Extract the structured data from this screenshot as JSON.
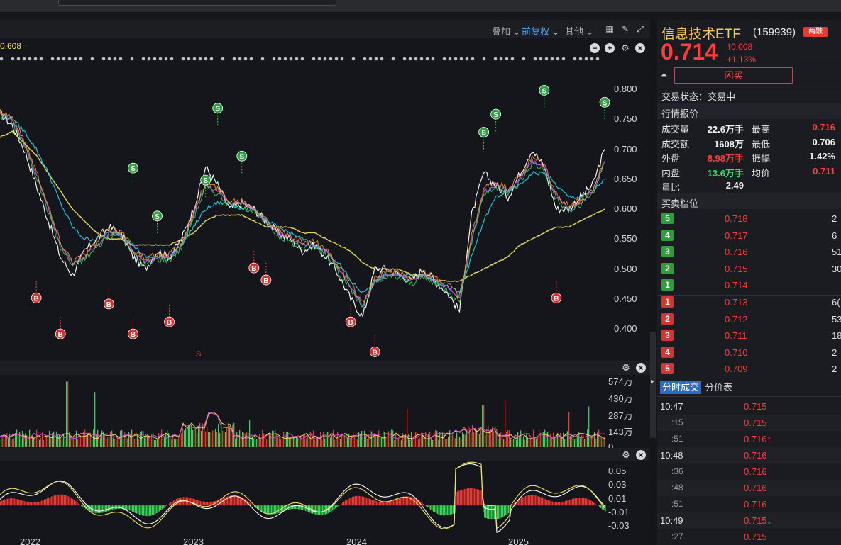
{
  "chart_toolbar": {
    "overlay": "叠加",
    "overlay_arrow": "⌄",
    "fq": "前复权",
    "fq_arrow": "⌄",
    "other": "其他",
    "other_arrow": "⌄"
  },
  "ma_label": "0.608 ↑",
  "colors": {
    "up": "#ff3b3b",
    "down": "#2ee06a",
    "title": "#f2c94c",
    "accent": "#2b6cc4"
  },
  "chart_data": [
    {
      "type": "line",
      "panel": "price",
      "y_ticks": [
        "0.800",
        "0.750",
        "0.700",
        "0.650",
        "0.600",
        "0.550",
        "0.500",
        "0.450",
        "0.400"
      ],
      "ylim": [
        0.36,
        0.84
      ],
      "x_ticks": [
        "2022",
        "2023",
        "2024",
        "2025"
      ],
      "series": [
        {
          "color": "#ffffff",
          "values": [
            0.76,
            0.74,
            0.7,
            0.64,
            0.58,
            0.52,
            0.49,
            0.53,
            0.55,
            0.57,
            0.56,
            0.52,
            0.5,
            0.53,
            0.52,
            0.55,
            0.6,
            0.67,
            0.64,
            0.6,
            0.61,
            0.6,
            0.58,
            0.56,
            0.55,
            0.53,
            0.54,
            0.52,
            0.49,
            0.45,
            0.42,
            0.5,
            0.5,
            0.49,
            0.48,
            0.5,
            0.48,
            0.46,
            0.43,
            0.59,
            0.66,
            0.64,
            0.62,
            0.66,
            0.7,
            0.67,
            0.6,
            0.6,
            0.62,
            0.64,
            0.7
          ]
        },
        {
          "color": "#f0e060",
          "values": [
            0.72,
            0.73,
            0.71,
            0.69,
            0.66,
            0.63,
            0.6,
            0.58,
            0.56,
            0.55,
            0.55,
            0.54,
            0.54,
            0.54,
            0.54,
            0.55,
            0.56,
            0.58,
            0.59,
            0.59,
            0.59,
            0.58,
            0.57,
            0.57,
            0.57,
            0.56,
            0.56,
            0.55,
            0.54,
            0.53,
            0.51,
            0.5,
            0.5,
            0.5,
            0.49,
            0.49,
            0.48,
            0.48,
            0.48,
            0.49,
            0.5,
            0.51,
            0.52,
            0.54,
            0.55,
            0.56,
            0.57,
            0.57,
            0.58,
            0.59,
            0.6
          ]
        },
        {
          "color": "#27c6e0",
          "values": [
            0.76,
            0.75,
            0.73,
            0.7,
            0.66,
            0.61,
            0.57,
            0.55,
            0.55,
            0.56,
            0.56,
            0.54,
            0.52,
            0.52,
            0.52,
            0.54,
            0.57,
            0.6,
            0.61,
            0.61,
            0.6,
            0.6,
            0.58,
            0.57,
            0.56,
            0.55,
            0.54,
            0.53,
            0.51,
            0.48,
            0.46,
            0.48,
            0.49,
            0.49,
            0.49,
            0.49,
            0.48,
            0.47,
            0.46,
            0.52,
            0.58,
            0.62,
            0.63,
            0.64,
            0.66,
            0.66,
            0.64,
            0.62,
            0.62,
            0.63,
            0.65
          ]
        },
        {
          "color": "#c050ff",
          "values": [
            0.76,
            0.75,
            0.71,
            0.66,
            0.6,
            0.54,
            0.51,
            0.52,
            0.54,
            0.56,
            0.56,
            0.53,
            0.51,
            0.52,
            0.52,
            0.54,
            0.59,
            0.64,
            0.63,
            0.61,
            0.61,
            0.6,
            0.58,
            0.56,
            0.55,
            0.54,
            0.54,
            0.53,
            0.5,
            0.47,
            0.44,
            0.48,
            0.49,
            0.49,
            0.48,
            0.49,
            0.48,
            0.47,
            0.45,
            0.55,
            0.63,
            0.64,
            0.63,
            0.65,
            0.68,
            0.67,
            0.62,
            0.6,
            0.61,
            0.63,
            0.68
          ]
        }
      ],
      "signals": [
        {
          "label": "S",
          "xi": 11,
          "y": 0.64
        },
        {
          "label": "S",
          "xi": 13,
          "y": 0.56
        },
        {
          "label": "S",
          "xi": 17,
          "y": 0.62
        },
        {
          "label": "S",
          "xi": 18,
          "y": 0.74
        },
        {
          "label": "S",
          "xi": 20,
          "y": 0.66
        },
        {
          "label": "S",
          "xi": 40,
          "y": 0.7
        },
        {
          "label": "S",
          "xi": 41,
          "y": 0.73
        },
        {
          "label": "S",
          "xi": 45,
          "y": 0.77
        },
        {
          "label": "S",
          "xi": 50,
          "y": 0.75
        },
        {
          "label": "B",
          "xi": 3,
          "y": 0.48
        },
        {
          "label": "B",
          "xi": 5,
          "y": 0.42
        },
        {
          "label": "B",
          "xi": 9,
          "y": 0.47
        },
        {
          "label": "B",
          "xi": 11,
          "y": 0.42
        },
        {
          "label": "B",
          "xi": 14,
          "y": 0.44
        },
        {
          "label": "B",
          "xi": 21,
          "y": 0.53
        },
        {
          "label": "B",
          "xi": 22,
          "y": 0.51
        },
        {
          "label": "B",
          "xi": 29,
          "y": 0.44
        },
        {
          "label": "B",
          "xi": 31,
          "y": 0.39
        },
        {
          "label": "B",
          "xi": 46,
          "y": 0.48
        }
      ]
    },
    {
      "type": "bar",
      "panel": "volume",
      "y_ticks": [
        "574万",
        "430万",
        "287万",
        "143万",
        "0"
      ],
      "ylim": [
        0,
        574
      ]
    },
    {
      "type": "bar",
      "panel": "macd",
      "y_ticks": [
        "0.05",
        "0.03",
        "0.01",
        "-0.01",
        "-0.03"
      ],
      "ylim": [
        -0.035,
        0.055
      ]
    }
  ],
  "quote": {
    "name": "信息技术ETF",
    "code": "(159939)",
    "badge": "两融",
    "price": "0.714",
    "change": "0.008",
    "change_pct": "+1.13%",
    "flash_buy": "闪买",
    "status": "交易状态：交易中",
    "section_quote": "行情报价",
    "fields": [
      {
        "label": "成交量",
        "value": "22.6万手",
        "color": "white"
      },
      {
        "label": "最高",
        "value": "0.716",
        "color": "red"
      },
      {
        "label": "成交额",
        "value": "1608万",
        "color": "white"
      },
      {
        "label": "最低",
        "value": "0.706",
        "color": "white"
      },
      {
        "label": "外盘",
        "value": "8.98万手",
        "color": "red"
      },
      {
        "label": "振幅",
        "value": "1.42%",
        "color": "white"
      },
      {
        "label": "内盘",
        "value": "13.6万手",
        "color": "green"
      },
      {
        "label": "均价",
        "value": "0.711",
        "color": "red"
      },
      {
        "label": "量比",
        "value": "2.49",
        "color": "white"
      }
    ],
    "section_orderbook": "买卖档位"
  },
  "orderbook": {
    "asks": [
      {
        "level": "5",
        "price": "0.718",
        "vol": "2"
      },
      {
        "level": "4",
        "price": "0.717",
        "vol": "6"
      },
      {
        "level": "3",
        "price": "0.716",
        "vol": "51"
      },
      {
        "level": "2",
        "price": "0.715",
        "vol": "30"
      },
      {
        "level": "1",
        "price": "0.714",
        "vol": ""
      }
    ],
    "bids": [
      {
        "level": "1",
        "price": "0.713",
        "vol": "6("
      },
      {
        "level": "2",
        "price": "0.712",
        "vol": "53"
      },
      {
        "level": "3",
        "price": "0.711",
        "vol": "18"
      },
      {
        "level": "4",
        "price": "0.710",
        "vol": "2"
      },
      {
        "level": "5",
        "price": "0.709",
        "vol": "2"
      }
    ]
  },
  "trades_tabs": [
    "分时成交",
    "分价表"
  ],
  "trades": [
    {
      "time": "10:47",
      "sub": false,
      "price": "0.715",
      "arrow": ""
    },
    {
      "time": ":15",
      "sub": true,
      "price": "0.715",
      "arrow": ""
    },
    {
      "time": ":51",
      "sub": true,
      "price": "0.716",
      "arrow": "↑"
    },
    {
      "time": "10:48",
      "sub": false,
      "price": "0.716",
      "arrow": ""
    },
    {
      "time": ":36",
      "sub": true,
      "price": "0.716",
      "arrow": ""
    },
    {
      "time": ":48",
      "sub": true,
      "price": "0.716",
      "arrow": ""
    },
    {
      "time": ":51",
      "sub": true,
      "price": "0.716",
      "arrow": ""
    },
    {
      "time": "10:49",
      "sub": false,
      "price": "0.715",
      "arrow": "↓"
    },
    {
      "time": ":27",
      "sub": true,
      "price": "0.715",
      "arrow": ""
    }
  ],
  "chart_marker": "S"
}
